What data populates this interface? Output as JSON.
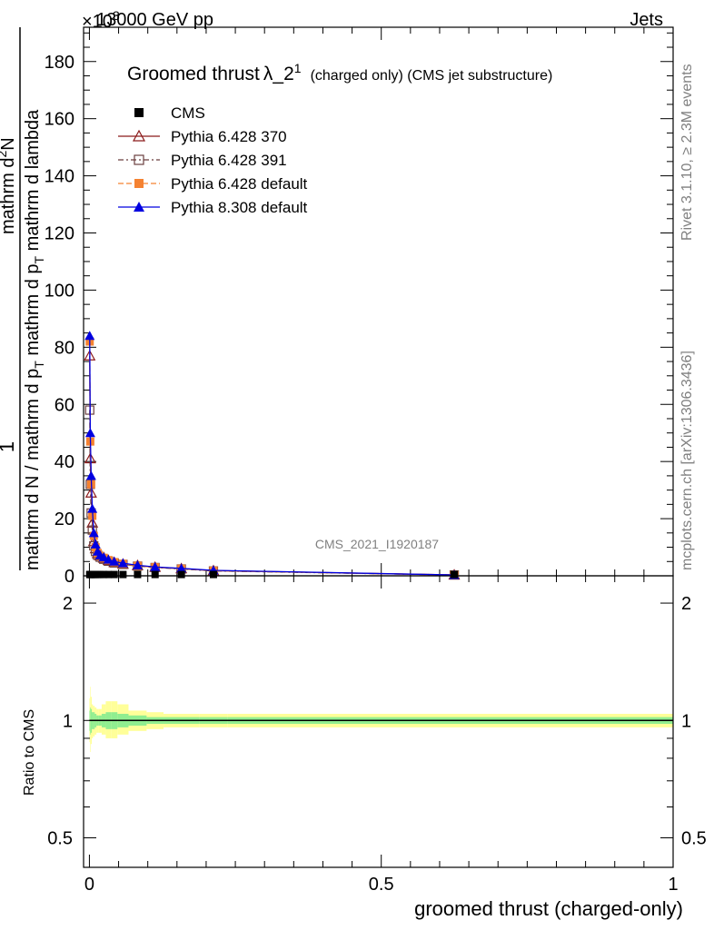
{
  "header": {
    "left_label": "13000 GeV pp",
    "right_label": "Jets",
    "exponent_label": "×10",
    "exponent_power": "3"
  },
  "side_labels": {
    "rivet": "Rivet 3.1.10, ≥ 2.3M events",
    "mcplots": "mcplots.cern.ch [arXiv:1306.3436]"
  },
  "watermark": "CMS_2021_I1920187",
  "chart_data": {
    "type": "line",
    "title": "Groomed thrust λ_2¹ (charged only) (CMS jet substructure)",
    "title_main": "Groomed thrust",
    "title_lambda": "λ_2",
    "title_sup": "1",
    "title_tail": "(charged only) (CMS jet substructure)",
    "ylabel_parts": {
      "one": "1",
      "den_left": "mathrm d N / mathrm d p",
      "den_sub": "T",
      "num_right": "mathrm d",
      "num_sup": "2",
      "num_n": "N",
      "den_right_a": "mathrm d p",
      "den_right_sub": "T",
      "den_right_b": "mathrm d lambda"
    },
    "xlabel": "groomed thrust (charged-only)",
    "ratio_ylabel": "Ratio to CMS",
    "xlim": [
      -0.01,
      1.0
    ],
    "ylim": [
      0,
      192000
    ],
    "ratio_ylim": [
      0.42,
      2.35
    ],
    "ratio_log": true,
    "x_ticks": [
      {
        "v": 0,
        "label": "0"
      },
      {
        "v": 0.5,
        "label": "0.5"
      },
      {
        "v": 1,
        "label": "1"
      }
    ],
    "y_ticks": [
      {
        "v": 0,
        "label": "0"
      },
      {
        "v": 20000,
        "label": "20"
      },
      {
        "v": 40000,
        "label": "40"
      },
      {
        "v": 60000,
        "label": "60"
      },
      {
        "v": 80000,
        "label": "80"
      },
      {
        "v": 100000,
        "label": "100"
      },
      {
        "v": 120000,
        "label": "120"
      },
      {
        "v": 140000,
        "label": "140"
      },
      {
        "v": 160000,
        "label": "160"
      },
      {
        "v": 180000,
        "label": "180"
      }
    ],
    "ratio_ticks": [
      {
        "v": 0.5,
        "label": "0.5"
      },
      {
        "v": 1,
        "label": "1"
      },
      {
        "v": 2,
        "label": "2"
      }
    ],
    "series": [
      {
        "name": "CMS",
        "color": "#000000",
        "marker": "square-filled",
        "x": [
          0.0005,
          0.0015,
          0.003,
          0.005,
          0.0075,
          0.0105,
          0.014,
          0.0185,
          0.0245,
          0.0325,
          0.0425,
          0.0575,
          0.0825,
          0.1125,
          0.1575,
          0.2125,
          0.625
        ],
        "y": [
          450,
          450,
          450,
          450,
          450,
          450,
          450,
          450,
          450,
          450,
          450,
          450,
          450,
          450,
          450,
          450,
          450
        ]
      },
      {
        "name": "Pythia 6.428 370",
        "color": "#8b1a1a",
        "marker": "triangle-open",
        "dash": "",
        "x": [
          0.0005,
          0.0015,
          0.003,
          0.005,
          0.0075,
          0.0105,
          0.014,
          0.0185,
          0.0245,
          0.0325,
          0.0425,
          0.0575,
          0.0825,
          0.1125,
          0.1575,
          0.2125,
          0.625
        ],
        "y": [
          77000,
          41000,
          29000,
          18500,
          12000,
          9500,
          7800,
          7000,
          6200,
          5400,
          4700,
          4100,
          3600,
          3000,
          2500,
          1800,
          300
        ]
      },
      {
        "name": "Pythia 6.428 391",
        "color": "#6b3f3f",
        "marker": "square-open",
        "dash": "6,3,2,3",
        "x": [
          0.0005,
          0.0015,
          0.003,
          0.005,
          0.0075,
          0.0105,
          0.014,
          0.0185,
          0.0245,
          0.0325,
          0.0425,
          0.0575,
          0.0825,
          0.1125,
          0.1575,
          0.2125,
          0.625
        ],
        "y": [
          58000,
          32000,
          22000,
          16000,
          10500,
          8500,
          7200,
          6500,
          5800,
          5100,
          4500,
          4000,
          3400,
          2900,
          2400,
          1700,
          300
        ]
      },
      {
        "name": "Pythia 6.428 default",
        "color": "#f58231",
        "marker": "square-filled",
        "dash": "6,3",
        "x": [
          0.0005,
          0.0015,
          0.003,
          0.005,
          0.0075,
          0.0105,
          0.014,
          0.0185,
          0.0245,
          0.0325,
          0.0425,
          0.0575,
          0.0825,
          0.1125,
          0.1575,
          0.2125,
          0.625
        ],
        "y": [
          82000,
          47000,
          32000,
          21000,
          14000,
          10000,
          8000,
          7000,
          6300,
          5500,
          4800,
          4200,
          3500,
          3000,
          2500,
          1800,
          300
        ]
      },
      {
        "name": "Pythia 8.308 default",
        "color": "#0000e0",
        "marker": "triangle-filled",
        "dash": "",
        "x": [
          0.0005,
          0.0015,
          0.003,
          0.005,
          0.0075,
          0.0105,
          0.014,
          0.0185,
          0.0245,
          0.0325,
          0.0425,
          0.0575,
          0.0825,
          0.1125,
          0.1575,
          0.2125,
          0.625
        ],
        "y": [
          84000,
          50000,
          35000,
          23500,
          15000,
          11000,
          8500,
          7200,
          6500,
          5700,
          5000,
          4400,
          3700,
          3100,
          2600,
          1900,
          300
        ]
      }
    ],
    "ratio_bands": {
      "edges": [
        0,
        0.001,
        0.002,
        0.004,
        0.006,
        0.009,
        0.012,
        0.016,
        0.021,
        0.028,
        0.037,
        0.048,
        0.067,
        0.098,
        0.127,
        0.188,
        0.237,
        1.0
      ],
      "stat_lo": [
        0.94,
        0.92,
        0.93,
        0.95,
        0.95,
        0.96,
        0.97,
        0.97,
        0.96,
        0.95,
        0.95,
        0.96,
        0.97,
        0.98,
        0.98,
        0.98,
        0.98
      ],
      "stat_hi": [
        1.06,
        1.08,
        1.07,
        1.05,
        1.05,
        1.04,
        1.03,
        1.03,
        1.04,
        1.05,
        1.05,
        1.04,
        1.03,
        1.02,
        1.02,
        1.02,
        1.02
      ],
      "tot_lo": [
        0.88,
        0.83,
        0.87,
        0.9,
        0.91,
        0.92,
        0.93,
        0.93,
        0.92,
        0.9,
        0.9,
        0.92,
        0.94,
        0.95,
        0.96,
        0.96,
        0.96
      ],
      "tot_hi": [
        1.14,
        1.22,
        1.15,
        1.1,
        1.09,
        1.08,
        1.07,
        1.07,
        1.1,
        1.12,
        1.12,
        1.1,
        1.06,
        1.05,
        1.04,
        1.04,
        1.04
      ],
      "stat_color": "#90ee90",
      "tot_color": "#ffff99"
    }
  }
}
